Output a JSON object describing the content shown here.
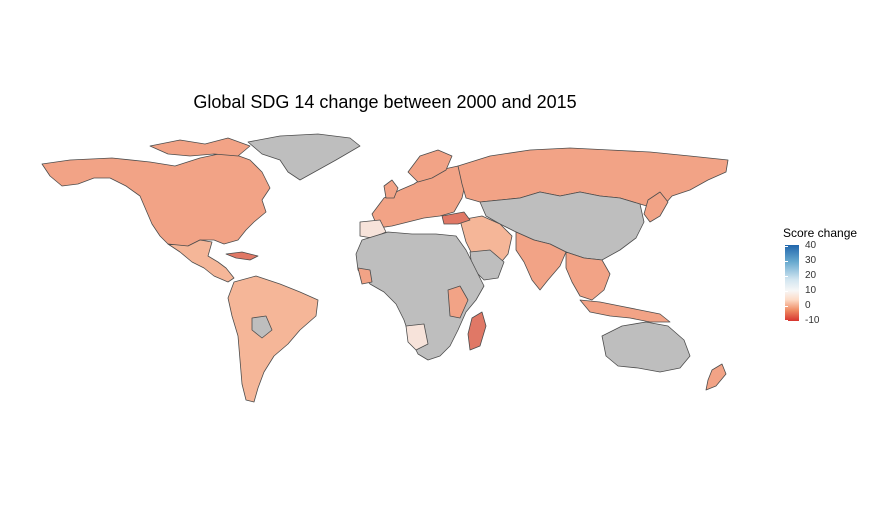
{
  "title": "Global SDG 14 change between 2000 and 2015",
  "legend": {
    "title": "Score change",
    "ticks": [
      "40",
      "30",
      "20",
      "10",
      "0",
      "-10"
    ]
  },
  "colors": {
    "no_data": "#bebebe",
    "border": "#555555",
    "salmon": "#f2a386",
    "peach": "#f5b698",
    "dark_red": "#e07866",
    "pale": "#f7e3da"
  }
}
